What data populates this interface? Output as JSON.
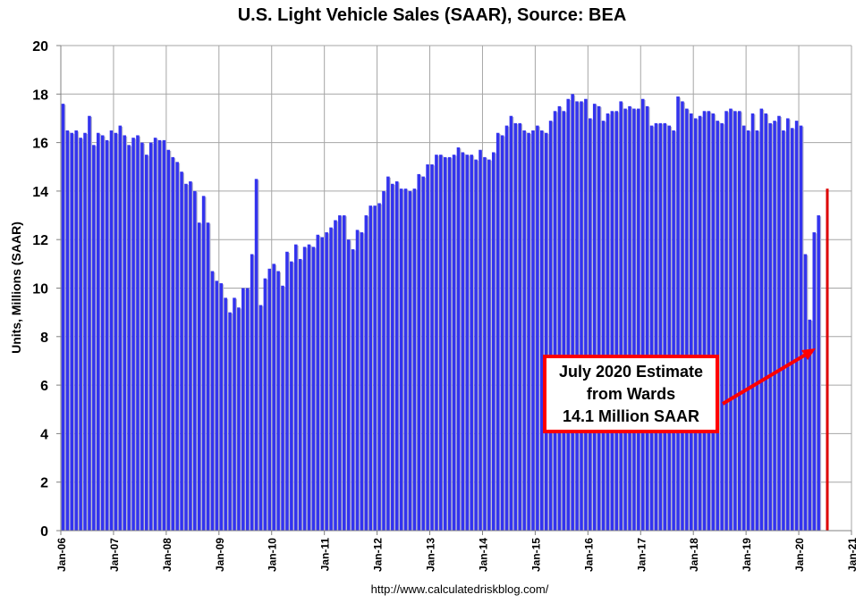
{
  "chart_data": {
    "type": "bar",
    "title": "U.S. Light Vehicle Sales (SAAR), Source: BEA",
    "xlabel": "",
    "ylabel": "Units, Millions (SAAR)",
    "ylim": [
      0,
      20
    ],
    "yticks": [
      0,
      2,
      4,
      6,
      8,
      10,
      12,
      14,
      16,
      18,
      20
    ],
    "xtick_labels": [
      "Jan-06",
      "Jan-07",
      "Jan-08",
      "Jan-09",
      "Jan-10",
      "Jan-11",
      "Jan-12",
      "Jan-13",
      "Jan-14",
      "Jan-15",
      "Jan-16",
      "Jan-17",
      "Jan-18",
      "Jan-19",
      "Jan-20",
      "Jan-21"
    ],
    "grid": true,
    "series": [
      {
        "color": "#3333ee",
        "start_month": "Jan-06",
        "values": [
          17.6,
          16.5,
          16.4,
          16.5,
          16.2,
          16.4,
          17.1,
          15.9,
          16.4,
          16.3,
          16.1,
          16.5,
          16.4,
          16.7,
          16.3,
          15.9,
          16.2,
          16.3,
          16.0,
          15.5,
          16.0,
          16.2,
          16.1,
          16.1,
          15.7,
          15.4,
          15.2,
          14.8,
          14.3,
          14.4,
          14.0,
          12.7,
          13.8,
          12.7,
          10.7,
          10.3,
          10.2,
          9.6,
          9.0,
          9.6,
          9.2,
          10.0,
          10.0,
          11.4,
          14.5,
          9.3,
          10.4,
          10.8,
          11.0,
          10.7,
          10.1,
          11.5,
          11.1,
          11.8,
          11.2,
          11.7,
          11.8,
          11.7,
          12.2,
          12.1,
          12.3,
          12.5,
          12.8,
          13.0,
          13.0,
          12.0,
          11.6,
          12.4,
          12.3,
          13.0,
          13.4,
          13.4,
          13.5,
          14.0,
          14.6,
          14.3,
          14.4,
          14.1,
          14.1,
          14.0,
          14.1,
          14.7,
          14.6,
          15.1,
          15.1,
          15.5,
          15.5,
          15.4,
          15.4,
          15.5,
          15.8,
          15.6,
          15.5,
          15.5,
          15.3,
          15.7,
          15.4,
          15.3,
          15.6,
          16.4,
          16.3,
          16.7,
          17.1,
          16.8,
          16.8,
          16.5,
          16.4,
          16.5,
          16.7,
          16.5,
          16.4,
          16.9,
          17.3,
          17.5,
          17.3,
          17.8,
          18.0,
          17.7,
          17.7,
          17.8,
          17.0,
          17.6,
          17.5,
          16.9,
          17.2,
          17.3,
          17.3,
          17.7,
          17.4,
          17.5,
          17.4,
          17.4,
          17.8,
          17.5,
          16.7,
          16.8,
          16.8,
          16.8,
          16.7,
          16.5,
          17.9,
          17.7,
          17.4,
          17.2,
          17.0,
          17.1,
          17.3,
          17.3,
          17.2,
          16.9,
          16.8,
          17.3,
          17.4,
          17.3,
          17.3,
          16.7,
          16.5,
          17.2,
          16.5,
          17.4,
          17.2,
          16.8,
          16.9,
          17.1,
          16.5,
          17.0,
          16.6,
          16.9,
          16.7,
          11.4,
          8.7,
          12.3,
          13.0
        ]
      }
    ],
    "highlight": {
      "month": "Jul-20",
      "value": 14.1,
      "color": "#dd0000"
    },
    "annotation": {
      "lines": [
        "July 2020 Estimate",
        "from Wards",
        "14.1 Million SAAR"
      ],
      "border_color": "#ff0000",
      "arrow_color": "#ff0000"
    }
  },
  "footer": {
    "source_url": "http://www.calculatedriskblog.com/"
  }
}
